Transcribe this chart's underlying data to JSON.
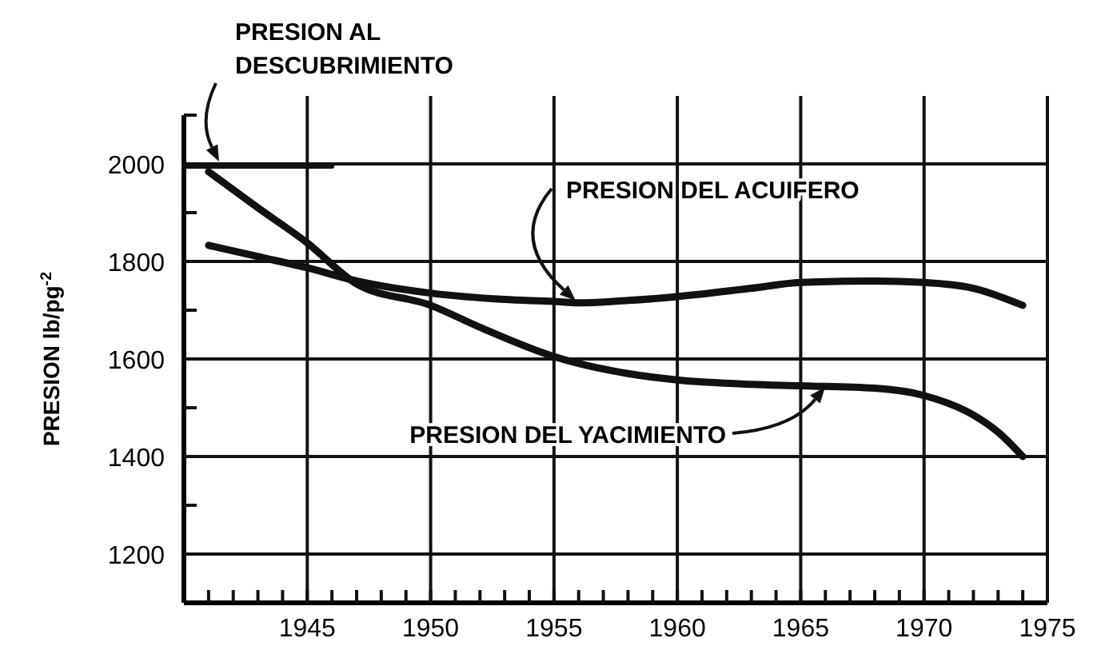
{
  "chart_data": {
    "type": "line",
    "ylabel": "PRESION lb/pg$^{-2}$",
    "xlim": [
      1940,
      1975
    ],
    "ylim": [
      1100,
      2100
    ],
    "xticks": [
      {
        "value": 1941,
        "label": null
      },
      {
        "value": 1942,
        "label": null
      },
      {
        "value": 1943,
        "label": null
      },
      {
        "value": 1944,
        "label": null
      },
      1945,
      {
        "value": 1946,
        "label": null
      },
      {
        "value": 1947,
        "label": null
      },
      {
        "value": 1948,
        "label": null
      },
      {
        "value": 1949,
        "label": null
      },
      1950,
      {
        "value": 1951,
        "label": null
      },
      {
        "value": 1952,
        "label": null
      },
      {
        "value": 1953,
        "label": null
      },
      {
        "value": 1954,
        "label": null
      },
      1955,
      {
        "value": 1956,
        "label": null
      },
      {
        "value": 1957,
        "label": null
      },
      {
        "value": 1958,
        "label": null
      },
      {
        "value": 1959,
        "label": null
      },
      1960,
      {
        "value": 1961,
        "label": null
      },
      {
        "value": 1962,
        "label": null
      },
      {
        "value": 1963,
        "label": null
      },
      {
        "value": 1964,
        "label": null
      },
      1965,
      {
        "value": 1966,
        "label": null
      },
      {
        "value": 1967,
        "label": null
      },
      {
        "value": 1968,
        "label": null
      },
      {
        "value": 1969,
        "label": null
      },
      1970,
      {
        "value": 1971,
        "label": null
      },
      {
        "value": 1972,
        "label": null
      },
      {
        "value": 1973,
        "label": null
      },
      {
        "value": 1974,
        "label": null
      },
      1975
    ],
    "yticks": [
      1200,
      {
        "value": 1300,
        "label": null
      },
      1400,
      {
        "value": 1500,
        "label": null
      },
      1600,
      {
        "value": 1700,
        "label": null
      },
      1800,
      {
        "value": 1900,
        "label": null
      },
      2000,
      {
        "value": 2100,
        "label": null
      }
    ],
    "grid": true,
    "marker": "none",
    "line_style": "solid",
    "series": [
      {
        "color": "#111111",
        "x": [
          1941,
          1943,
          1945,
          1947,
          1950,
          1952,
          1955,
          1958,
          1960,
          1963,
          1965,
          1968,
          1970,
          1972,
          1973,
          1974
        ],
        "values": [
          1984,
          1910,
          1838,
          1754,
          1710,
          1665,
          1605,
          1570,
          1557,
          1548,
          1545,
          1540,
          1525,
          1485,
          1450,
          1400
        ]
      },
      {
        "color": "#111111",
        "x": [
          1941,
          1943,
          1945,
          1947,
          1950,
          1953,
          1955,
          1956,
          1958,
          1960,
          1963,
          1965,
          1968,
          1970,
          1972,
          1974
        ],
        "values": [
          1833,
          1810,
          1787,
          1760,
          1735,
          1722,
          1718,
          1715,
          1720,
          1728,
          1745,
          1757,
          1760,
          1757,
          1745,
          1710
        ]
      },
      {
        "color": "#111111",
        "x": [
          1940,
          1946
        ],
        "values": [
          1995,
          1995
        ]
      }
    ],
    "annotations": [
      "PRESION AL\nDESCUBRIMIENTO",
      "PRESION DEL ACUIFERO",
      "PRESION DEL YACIMIENTO"
    ]
  }
}
